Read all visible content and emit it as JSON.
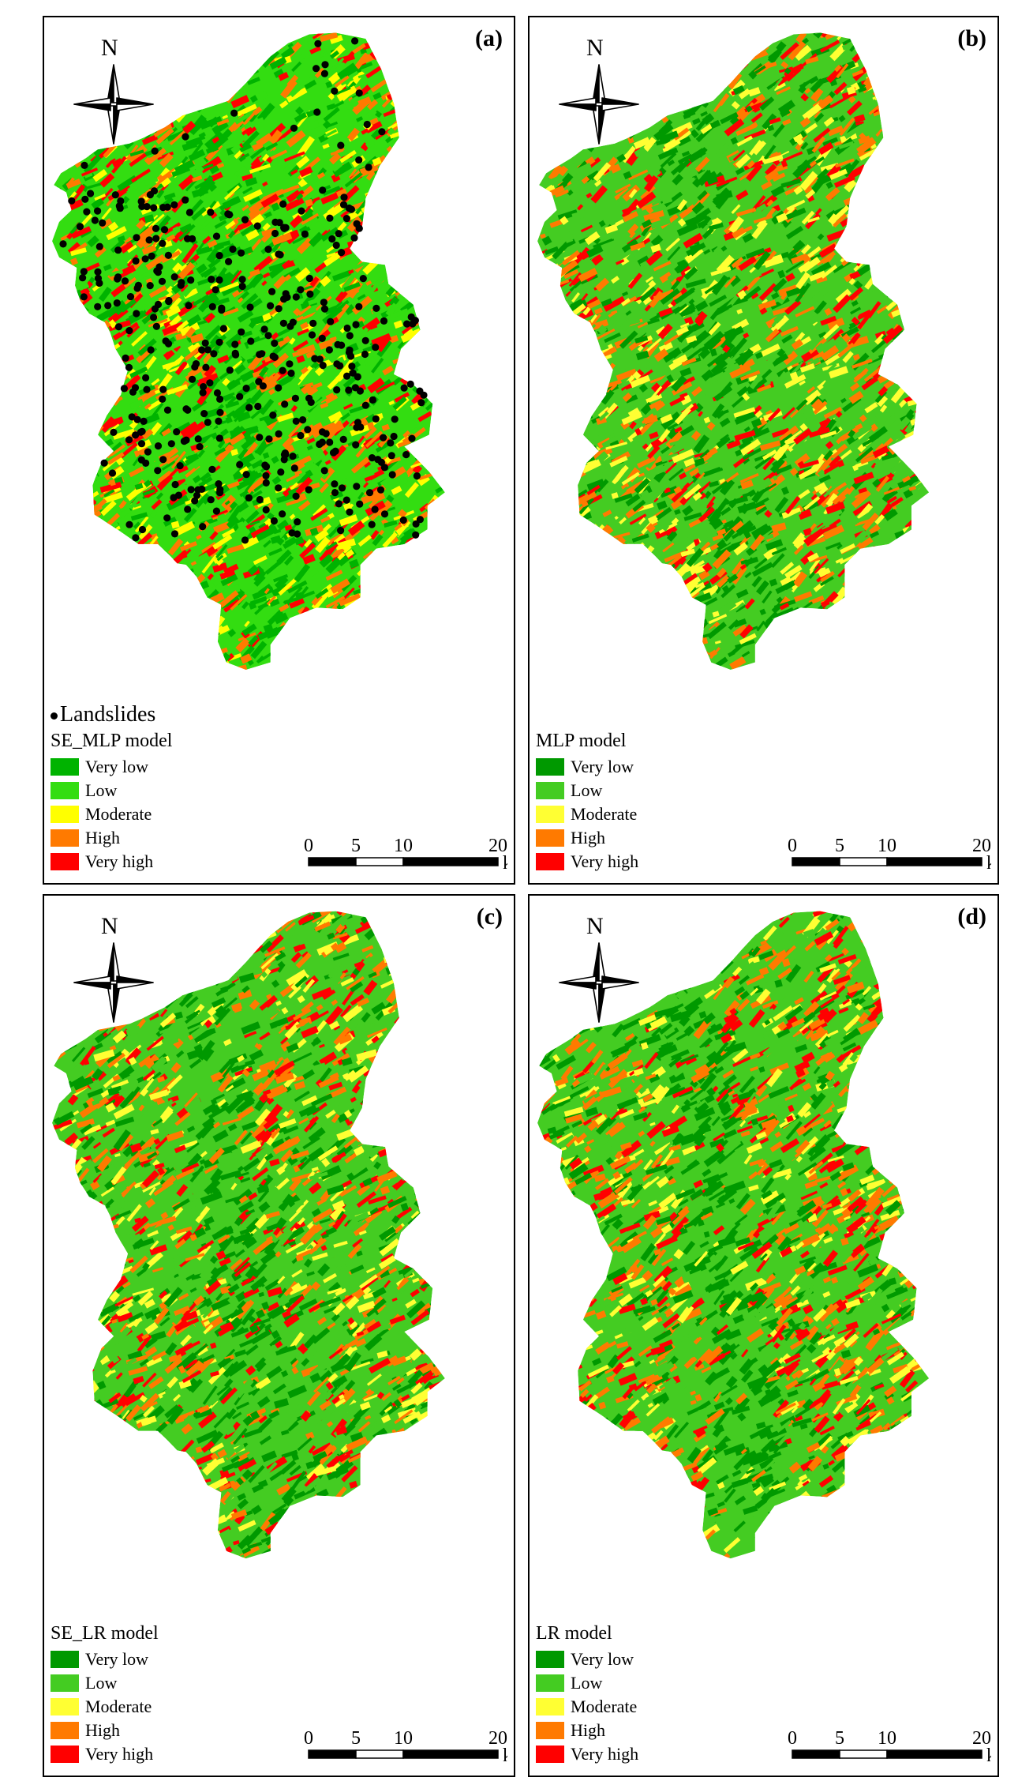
{
  "panels": [
    {
      "label": "(a)",
      "north": "N",
      "legend_title": "SE_MLP model",
      "points_label": "Landslides",
      "classes": [
        {
          "label": "Very low",
          "color": "#00b300"
        },
        {
          "label": "Low",
          "color": "#33dd11"
        },
        {
          "label": "Moderate",
          "color": "#ffff00"
        },
        {
          "label": "High",
          "color": "#ff7a00"
        },
        {
          "label": "Very high",
          "color": "#ff0000"
        }
      ],
      "scale": {
        "ticks": [
          "0",
          "5",
          "10",
          "20"
        ],
        "unit": "km"
      }
    },
    {
      "label": "(b)",
      "north": "N",
      "legend_title": "MLP model",
      "classes": [
        {
          "label": "Very low",
          "color": "#009900"
        },
        {
          "label": "Low",
          "color": "#44cc22"
        },
        {
          "label": "Moderate",
          "color": "#ffff33"
        },
        {
          "label": "High",
          "color": "#ff7a00"
        },
        {
          "label": "Very high",
          "color": "#ff0000"
        }
      ],
      "scale": {
        "ticks": [
          "0",
          "5",
          "10",
          "20"
        ],
        "unit": "km"
      }
    },
    {
      "label": "(c)",
      "north": "N",
      "legend_title": "SE_LR model",
      "classes": [
        {
          "label": "Very low",
          "color": "#009900"
        },
        {
          "label": "Low",
          "color": "#44cc22"
        },
        {
          "label": "Moderate",
          "color": "#ffff33"
        },
        {
          "label": "High",
          "color": "#ff7a00"
        },
        {
          "label": "Very high",
          "color": "#ff0000"
        }
      ],
      "scale": {
        "ticks": [
          "0",
          "5",
          "10",
          "20"
        ],
        "unit": "km"
      }
    },
    {
      "label": "(d)",
      "north": "N",
      "legend_title": "LR model",
      "classes": [
        {
          "label": "Very low",
          "color": "#009900"
        },
        {
          "label": "Low",
          "color": "#44cc22"
        },
        {
          "label": "Moderate",
          "color": "#ffff33"
        },
        {
          "label": "High",
          "color": "#ff7a00"
        },
        {
          "label": "Very high",
          "color": "#ff0000"
        }
      ],
      "scale": {
        "ticks": [
          "0",
          "5",
          "10",
          "20"
        ],
        "unit": "km"
      }
    }
  ]
}
